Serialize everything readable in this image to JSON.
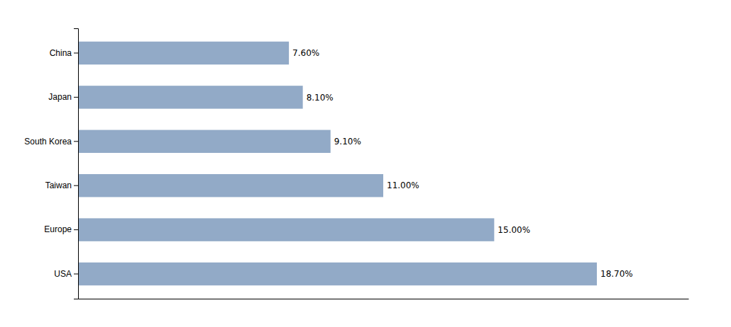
{
  "chart_data": {
    "type": "bar",
    "orientation": "horizontal",
    "categories": [
      "USA",
      "Europe",
      "Taiwan",
      "South Korea",
      "Japan",
      "China"
    ],
    "values": [
      18.7,
      15.0,
      11.0,
      9.1,
      8.1,
      7.6
    ],
    "value_labels": [
      "18.70%",
      "15.00%",
      "11.00%",
      "9.10%",
      "8.10%",
      "7.60%"
    ],
    "data_labels": true,
    "color": "#92aac7",
    "xlim": [
      0,
      22
    ],
    "tick_labels": "y",
    "grid": false
  }
}
